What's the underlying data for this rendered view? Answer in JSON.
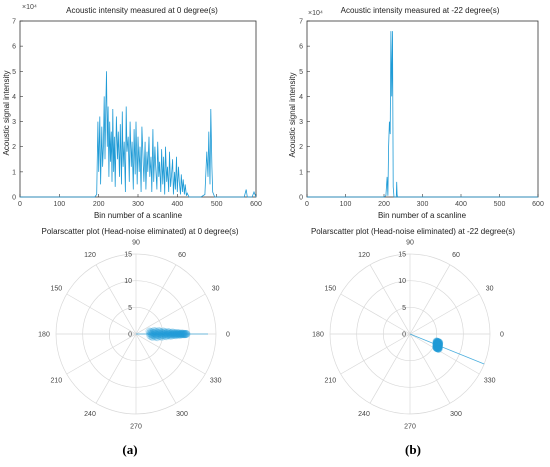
{
  "colors": {
    "series": "#1f9bd6",
    "axis": "#333333",
    "grid": "#d9d9d9"
  },
  "chart_data": [
    {
      "type": "line",
      "title": "Acoustic intensity measured at 0 degree(s)",
      "xlabel": "Bin number of a scanline",
      "ylabel": "Acoustic signal intensity",
      "y_exponent": "×10⁴",
      "xlim": [
        0,
        600
      ],
      "ylim": [
        0,
        70000
      ],
      "xticks": [
        "0",
        "100",
        "200",
        "300",
        "400",
        "500",
        "600"
      ],
      "yticks": [
        "0",
        "1",
        "2",
        "3",
        "4",
        "5",
        "6",
        "7"
      ],
      "series": [
        {
          "x": [
            0,
            190,
            195,
            198,
            200,
            203,
            205,
            208,
            210,
            212,
            214,
            216,
            218,
            220,
            222,
            224,
            226,
            228,
            230,
            232,
            234,
            236,
            238,
            240,
            242,
            245,
            248,
            250,
            253,
            255,
            258,
            260,
            262,
            265,
            268,
            270,
            272,
            275,
            278,
            280,
            283,
            285,
            288,
            290,
            293,
            295,
            298,
            300,
            303,
            305,
            308,
            310,
            313,
            315,
            318,
            320,
            323,
            325,
            328,
            330,
            333,
            335,
            338,
            340,
            343,
            345,
            348,
            350,
            353,
            355,
            358,
            360,
            363,
            365,
            368,
            370,
            373,
            375,
            378,
            380,
            383,
            385,
            388,
            390,
            393,
            395,
            398,
            400,
            403,
            405,
            408,
            410,
            413,
            415,
            418,
            420,
            423,
            425,
            430,
            440,
            460,
            470,
            475,
            478,
            480,
            483,
            485,
            488,
            490,
            495,
            500,
            520,
            570,
            575,
            578,
            590,
            595,
            600
          ],
          "y": [
            0,
            0,
            1000,
            30000,
            10000,
            32000,
            5000,
            28000,
            12000,
            20000,
            40000,
            15000,
            34000,
            50000,
            20000,
            36000,
            8000,
            30000,
            14000,
            26000,
            6000,
            35000,
            10000,
            24000,
            4000,
            32000,
            15000,
            26000,
            8000,
            29000,
            5000,
            34000,
            12000,
            22000,
            2000,
            36000,
            18000,
            24000,
            6000,
            30000,
            12000,
            22000,
            3000,
            27000,
            9000,
            30000,
            5000,
            24000,
            10000,
            20000,
            2000,
            28000,
            15000,
            6000,
            22000,
            3000,
            18000,
            10000,
            24000,
            8000,
            16000,
            2000,
            27000,
            6000,
            20000,
            12000,
            3000,
            22000,
            8000,
            14000,
            2000,
            19000,
            5000,
            16000,
            1000,
            20000,
            6000,
            12000,
            2000,
            18000,
            4000,
            8000,
            15000,
            1000,
            10000,
            3000,
            16000,
            2000,
            12000,
            6000,
            1000,
            9000,
            2000,
            7000,
            1000,
            5000,
            500,
            1500,
            0,
            0,
            0,
            1000,
            18000,
            8000,
            26000,
            5000,
            35000,
            12000,
            2000,
            0,
            0,
            0,
            0,
            3000,
            0,
            0,
            2000,
            0
          ]
        }
      ]
    },
    {
      "type": "line",
      "title": "Acoustic intensity measured at -22 degree(s)",
      "xlabel": "Bin number of a scanline",
      "ylabel": "Acoustic signal intensity",
      "y_exponent": "×10⁴",
      "xlim": [
        0,
        600
      ],
      "ylim": [
        0,
        70000
      ],
      "xticks": [
        "0",
        "100",
        "200",
        "300",
        "400",
        "500",
        "600"
      ],
      "yticks": [
        "0",
        "1",
        "2",
        "3",
        "4",
        "5",
        "6",
        "7"
      ],
      "series": [
        {
          "x": [
            0,
            200,
            205,
            208,
            210,
            212,
            214,
            216,
            218,
            220,
            222,
            224,
            226,
            228,
            232,
            233,
            234,
            235,
            240,
            600
          ],
          "y": [
            0,
            0,
            500,
            8000,
            500,
            20000,
            30000,
            25000,
            66000,
            40000,
            66000,
            4000,
            0,
            0,
            0,
            6000,
            1000,
            0,
            0,
            0
          ]
        }
      ]
    },
    {
      "type": "scatter",
      "title": "Polarscatter plot (Head-noise eliminated) at 0 degree(s)",
      "radial_ticks": [
        "0",
        "5",
        "10",
        "15"
      ],
      "rlim": [
        0,
        15
      ],
      "angle_ticks": [
        "90",
        "60",
        "30",
        "0",
        "330",
        "300",
        "270",
        "240",
        "210",
        "180",
        "150",
        "120"
      ],
      "angle_deg": 0,
      "r_range": [
        2.5,
        9.5
      ],
      "r_peak": 3.8,
      "ray_end": 13.5
    },
    {
      "type": "scatter",
      "title": "Polarscatter plot (Head-noise eliminated) at -22 degree(s)",
      "radial_ticks": [
        "0",
        "5",
        "10",
        "15"
      ],
      "rlim": [
        0,
        15
      ],
      "angle_ticks": [
        "90",
        "60",
        "30",
        "0",
        "330",
        "300",
        "270",
        "240",
        "210",
        "180",
        "150",
        "120"
      ],
      "angle_deg": -22,
      "r_range": [
        5.3,
        5.9
      ],
      "r_peak": 5.6,
      "ray_end": 15
    }
  ],
  "captions": {
    "a": "(a)",
    "b": "(b)"
  }
}
